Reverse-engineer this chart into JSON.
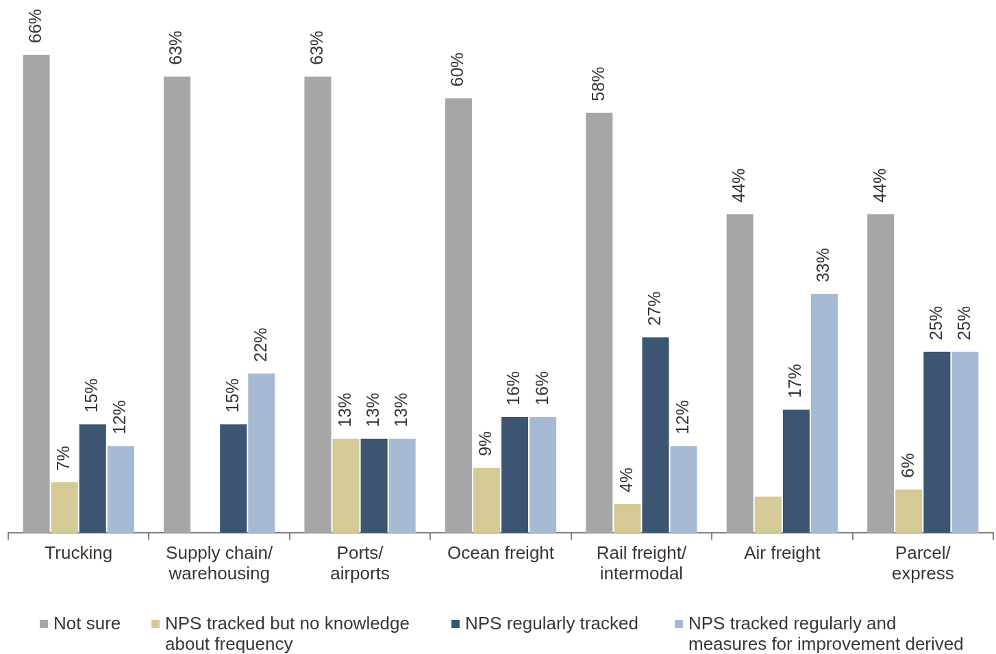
{
  "chart_data": {
    "type": "bar",
    "categories": [
      "Trucking",
      "Supply chain/\nwarehousing",
      "Ports/\nairports",
      "Ocean freight",
      "Rail freight/\nintermodal",
      "Air freight",
      "Parcel/\nexpress"
    ],
    "series": [
      {
        "name": "Not sure",
        "color": "#a6a6a6",
        "values": [
          66,
          63,
          63,
          60,
          58,
          44,
          44
        ],
        "value_labels": [
          "66%",
          "63%",
          "63%",
          "60%",
          "58%",
          "44%",
          "44%"
        ]
      },
      {
        "name": "NPS tracked but no knowledge about frequency",
        "color": "#d5c995",
        "values": [
          7,
          null,
          13,
          9,
          4,
          5,
          6
        ],
        "value_labels": [
          "7%",
          null,
          "13%",
          "9%",
          "4%",
          null,
          "6%"
        ]
      },
      {
        "name": "NPS regularly tracked",
        "color": "#3b5572",
        "values": [
          15,
          15,
          13,
          16,
          27,
          17,
          25
        ],
        "value_labels": [
          "15%",
          "15%",
          "13%",
          "16%",
          "27%",
          "17%",
          "25%"
        ]
      },
      {
        "name": "NPS tracked regularly and measures for improvement derived",
        "color": "#a6bbd3",
        "values": [
          12,
          22,
          13,
          16,
          12,
          33,
          25
        ],
        "value_labels": [
          "12%",
          "22%",
          "13%",
          "16%",
          "12%",
          "33%",
          "25%"
        ]
      }
    ],
    "legend": "bottom"
  }
}
